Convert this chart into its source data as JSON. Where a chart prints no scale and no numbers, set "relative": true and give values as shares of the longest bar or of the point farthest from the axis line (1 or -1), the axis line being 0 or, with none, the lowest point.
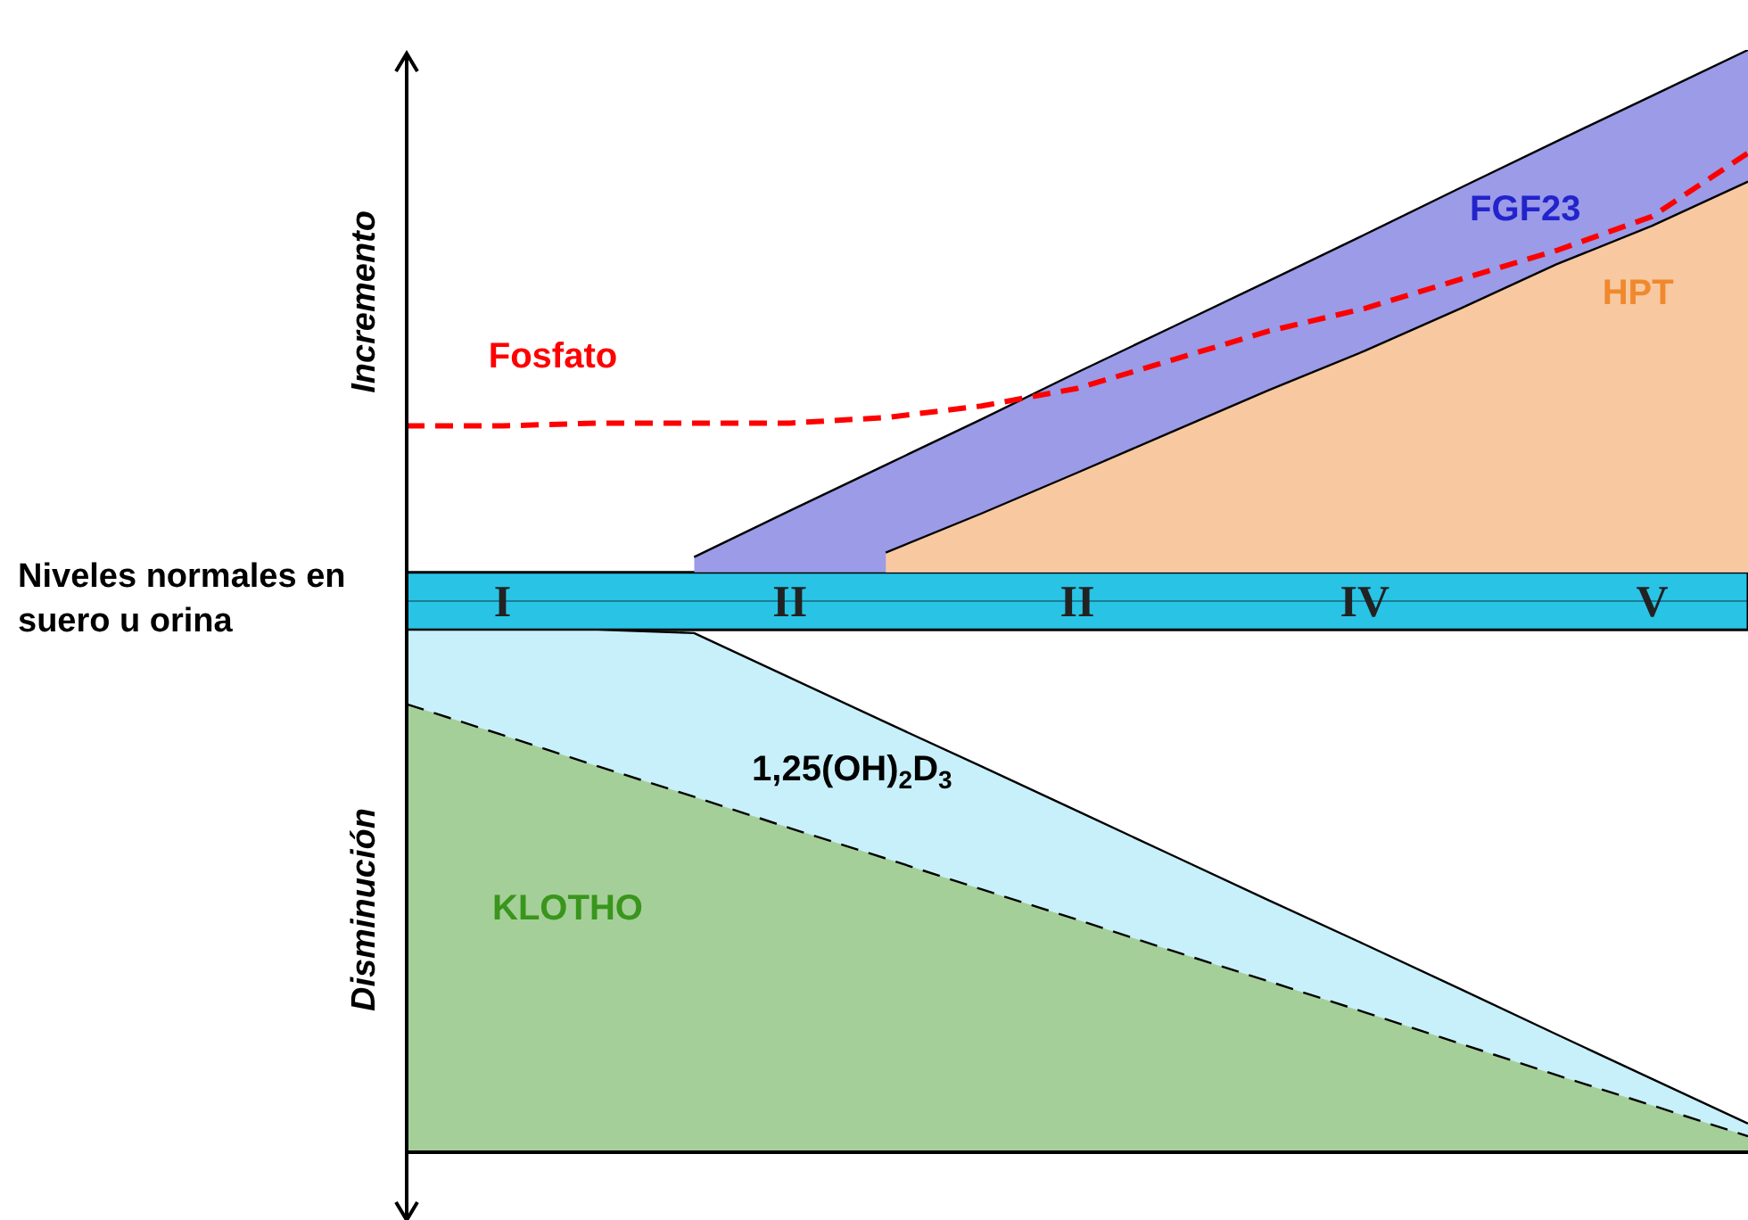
{
  "chart_data": {
    "type": "area",
    "relative": true,
    "categories": [
      null,
      "I",
      null,
      null,
      "II",
      null,
      null,
      "II",
      null,
      null,
      "IV",
      null,
      null,
      "V",
      null
    ],
    "series": [
      {
        "name": "FGF23",
        "type": "area",
        "color": "#9b9be8",
        "values": [
          null,
          null,
          null,
          0.08,
          0.164,
          0.247,
          0.33,
          0.415,
          0.498,
          0.581,
          0.665,
          0.75,
          0.834,
          0.917,
          1
        ]
      },
      {
        "name": "HPT",
        "type": "area",
        "color": "#f8c9a0",
        "values": [
          null,
          null,
          null,
          null,
          null,
          0.088,
          0.159,
          0.233,
          0.308,
          0.383,
          0.454,
          0.531,
          0.611,
          0.681,
          0.761
        ]
      },
      {
        "name": "1,25(OH)$_{2}$D$_{3}$",
        "type": "area",
        "color": "#c8f0fa",
        "values": [
          -0.052,
          -0.052,
          -0.052,
          -0.058,
          -0.139,
          -0.22,
          -0.3,
          -0.381,
          -0.462,
          -0.543,
          -0.623,
          -0.704,
          -0.786,
          -0.867,
          -0.948
        ]
      },
      {
        "name": "KLOTHO",
        "type": "area",
        "color": "#a5cf98",
        "line_style": "dashed",
        "values": [
          -0.187,
          -0.243,
          -0.3,
          -0.355,
          -0.412,
          -0.467,
          -0.523,
          -0.578,
          -0.635,
          -0.69,
          -0.746,
          -0.803,
          -0.86,
          -0.915,
          -0.971
        ]
      },
      {
        "name": "Fosfato",
        "type": "line",
        "color": "#ff0000",
        "line_style": "dashed",
        "values": [
          0.318,
          0.318,
          0.323,
          0.323,
          0.323,
          0.333,
          0.354,
          0.386,
          0.438,
          0.49,
          0.531,
          0.584,
          0.636,
          0.698,
          0.813
        ]
      }
    ],
    "bands": [
      {
        "axis": "y",
        "from": -0.052,
        "to": 0.052,
        "label": "Niveles normales en suero u orina",
        "color": "#29c3e6"
      }
    ],
    "annotations": [
      "Incremento",
      "Disminución"
    ],
    "marker": "none",
    "legend": false,
    "grid": false
  }
}
